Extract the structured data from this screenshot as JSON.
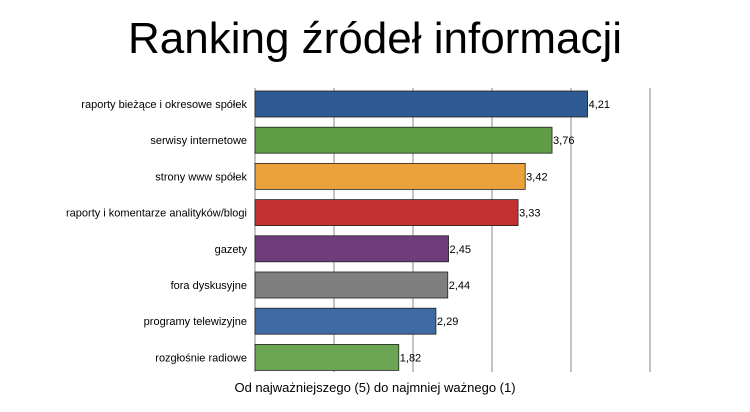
{
  "chart_data": {
    "type": "bar",
    "orientation": "horizontal",
    "title": "Ranking źródeł informacji",
    "xlabel": "Od najważniejszego (5) do najmniej ważnego (1)",
    "ylabel": "",
    "xlim": [
      0,
      5
    ],
    "grid": true,
    "categories": [
      "raporty bieżące i okresowe spółek",
      "serwisy internetowe",
      "strony www spółek",
      "raporty i komentarze analityków/blogi",
      "gazety",
      "fora dyskusyjne",
      "programy telewizyjne",
      "rozgłośnie radiowe"
    ],
    "values": [
      4.21,
      3.76,
      3.42,
      3.33,
      2.45,
      2.44,
      2.29,
      1.82
    ],
    "value_labels": [
      "4,21",
      "3,76",
      "3,42",
      "3,33",
      "2,45",
      "2,44",
      "2,29",
      "1,82"
    ],
    "colors": [
      "#2e5a94",
      "#5f9c46",
      "#eba23a",
      "#c33131",
      "#6f3c7c",
      "#7f7f7f",
      "#3f6ba3",
      "#6aa553"
    ]
  }
}
